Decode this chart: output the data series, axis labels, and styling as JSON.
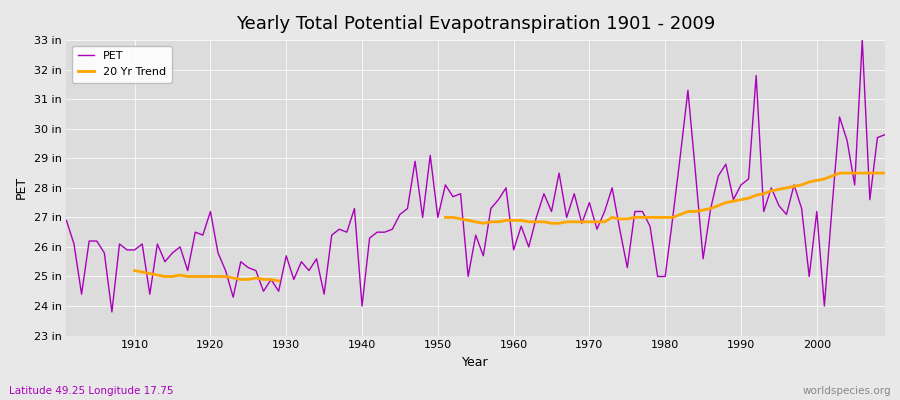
{
  "title": "Yearly Total Potential Evapotranspiration 1901 - 2009",
  "xlabel": "Year",
  "ylabel": "PET",
  "subtitle_left": "Latitude 49.25 Longitude 17.75",
  "subtitle_right": "worldspecies.org",
  "pet_color": "#AA00BB",
  "trend_color": "#FFA500",
  "fig_bg_color": "#E8E8E8",
  "plot_bg_color": "#DCDCDC",
  "ylim": [
    23,
    33
  ],
  "ytick_labels": [
    "23 in",
    "24 in",
    "25 in",
    "26 in",
    "27 in",
    "28 in",
    "29 in",
    "30 in",
    "31 in",
    "32 in",
    "33 in"
  ],
  "ytick_values": [
    23,
    24,
    25,
    26,
    27,
    28,
    29,
    30,
    31,
    32,
    33
  ],
  "years": [
    1901,
    1902,
    1903,
    1904,
    1905,
    1906,
    1907,
    1908,
    1909,
    1910,
    1911,
    1912,
    1913,
    1914,
    1915,
    1916,
    1917,
    1918,
    1919,
    1920,
    1921,
    1922,
    1923,
    1924,
    1925,
    1926,
    1927,
    1928,
    1929,
    1930,
    1931,
    1932,
    1933,
    1934,
    1935,
    1936,
    1937,
    1938,
    1939,
    1940,
    1941,
    1942,
    1943,
    1944,
    1945,
    1946,
    1947,
    1948,
    1949,
    1950,
    1951,
    1952,
    1953,
    1954,
    1955,
    1956,
    1957,
    1958,
    1959,
    1960,
    1961,
    1962,
    1963,
    1964,
    1965,
    1966,
    1967,
    1968,
    1969,
    1970,
    1971,
    1972,
    1973,
    1974,
    1975,
    1976,
    1977,
    1978,
    1979,
    1980,
    1981,
    1982,
    1983,
    1984,
    1985,
    1986,
    1987,
    1988,
    1989,
    1990,
    1991,
    1992,
    1993,
    1994,
    1995,
    1996,
    1997,
    1998,
    1999,
    2000,
    2001,
    2002,
    2003,
    2004,
    2005,
    2006,
    2007,
    2008,
    2009
  ],
  "pet_values": [
    26.9,
    26.1,
    24.4,
    26.2,
    26.2,
    25.8,
    23.8,
    26.1,
    25.9,
    25.9,
    26.1,
    24.4,
    26.1,
    25.5,
    25.8,
    26.0,
    25.2,
    26.5,
    26.4,
    27.2,
    25.8,
    25.2,
    24.3,
    25.5,
    25.3,
    25.2,
    24.5,
    24.9,
    24.5,
    25.7,
    24.9,
    25.5,
    25.2,
    25.6,
    24.4,
    26.4,
    26.6,
    26.5,
    27.3,
    24.0,
    26.3,
    26.5,
    26.5,
    26.6,
    27.1,
    27.3,
    28.9,
    27.0,
    29.1,
    27.0,
    28.1,
    27.7,
    27.8,
    25.0,
    26.4,
    25.7,
    27.3,
    27.6,
    28.0,
    25.9,
    26.7,
    26.0,
    27.0,
    27.8,
    27.2,
    28.5,
    27.0,
    27.8,
    26.8,
    27.5,
    26.6,
    27.2,
    28.0,
    26.6,
    25.3,
    27.2,
    27.2,
    26.7,
    25.0,
    25.0,
    27.0,
    29.1,
    31.3,
    28.5,
    25.6,
    27.3,
    28.4,
    28.8,
    27.6,
    28.1,
    28.3,
    31.8,
    27.2,
    28.0,
    27.4,
    27.1,
    28.1,
    27.3,
    25.0,
    27.2,
    24.0,
    27.3,
    30.4,
    29.6,
    28.1,
    33.0,
    27.6,
    29.7,
    29.8
  ],
  "trend_segment1_years": [
    1910,
    1911,
    1912,
    1913,
    1914,
    1915,
    1916,
    1917,
    1918,
    1919,
    1920,
    1921,
    1922,
    1923,
    1924,
    1925,
    1926,
    1927,
    1928,
    1929
  ],
  "trend_segment1_values": [
    25.2,
    25.15,
    25.1,
    25.05,
    25.0,
    25.0,
    25.05,
    25.0,
    25.0,
    25.0,
    25.0,
    25.0,
    25.0,
    24.95,
    24.9,
    24.9,
    24.95,
    24.9,
    24.9,
    24.85
  ],
  "trend_segment2_years": [
    1951,
    1952,
    1953,
    1954,
    1955,
    1956,
    1957,
    1958,
    1959,
    1960,
    1961,
    1962,
    1963,
    1964,
    1965,
    1966,
    1967,
    1968,
    1969,
    1970,
    1971,
    1972,
    1973,
    1974,
    1975,
    1976,
    1977,
    1978,
    1979,
    1980,
    1981,
    1982,
    1983,
    1984,
    1985,
    1986,
    1987,
    1988,
    1989,
    1990,
    1991,
    1992,
    1993,
    1994,
    1995,
    1996,
    1997,
    1998,
    1999,
    2000,
    2001,
    2002,
    2003,
    2004,
    2005,
    2006,
    2007,
    2008,
    2009
  ],
  "trend_segment2_values": [
    27.0,
    27.0,
    26.95,
    26.9,
    26.85,
    26.8,
    26.85,
    26.85,
    26.9,
    26.9,
    26.9,
    26.85,
    26.85,
    26.85,
    26.8,
    26.8,
    26.85,
    26.85,
    26.85,
    26.85,
    26.85,
    26.85,
    27.0,
    26.95,
    26.95,
    27.0,
    27.0,
    27.0,
    27.0,
    27.0,
    27.0,
    27.1,
    27.2,
    27.2,
    27.25,
    27.3,
    27.4,
    27.5,
    27.55,
    27.6,
    27.65,
    27.75,
    27.8,
    27.9,
    27.95,
    28.0,
    28.05,
    28.1,
    28.2,
    28.25,
    28.3,
    28.4,
    28.5,
    28.5,
    28.5,
    28.5,
    28.5,
    28.5,
    28.5
  ]
}
